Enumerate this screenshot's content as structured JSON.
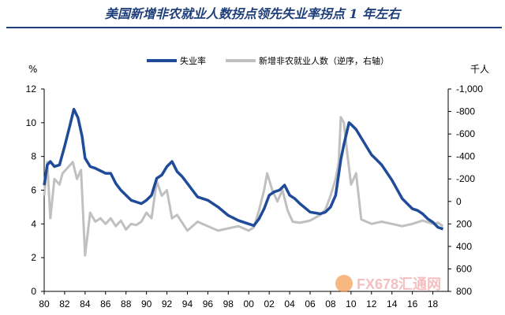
{
  "title": "美国新增非农就业人数拐点领先失业率拐点 1 年左右",
  "watermark": "FX678汇通网",
  "colors": {
    "title": "#1f3f7a",
    "unemployment": "#1f4b99",
    "payrolls": "#c0c0c0",
    "watermark": "#ef8a8a"
  },
  "chart_data": {
    "type": "line",
    "x_tick_labels": [
      "80",
      "82",
      "84",
      "86",
      "88",
      "90",
      "92",
      "94",
      "96",
      "98",
      "00",
      "02",
      "04",
      "06",
      "08",
      "10",
      "12",
      "14",
      "16",
      "18"
    ],
    "x_ticks": [
      1980,
      1982,
      1984,
      1986,
      1988,
      1990,
      1992,
      1994,
      1996,
      1998,
      2000,
      2002,
      2004,
      2006,
      2008,
      2010,
      2012,
      2014,
      2016,
      2018
    ],
    "xlim": [
      1980,
      2019.5
    ],
    "left_axis": {
      "unit": "%",
      "ticks": [
        0,
        2,
        4,
        6,
        8,
        10,
        12
      ],
      "ylim": [
        0,
        12
      ]
    },
    "right_axis": {
      "unit": "千人",
      "ticks": [
        -1000,
        -800,
        -600,
        -400,
        -200,
        0,
        200,
        400,
        600,
        800
      ],
      "tick_labels": [
        "-1,000",
        "-800",
        "-600",
        "-400",
        "-200",
        "0",
        "200",
        "400",
        "600",
        "800"
      ],
      "ylim": [
        800,
        -1000
      ],
      "inverted": true
    },
    "legend_position": "top",
    "series": [
      {
        "name": "失业率",
        "axis": "left",
        "x": [
          1980,
          1980.3,
          1980.6,
          1981,
          1981.5,
          1982,
          1982.5,
          1982.9,
          1983.3,
          1983.7,
          1984,
          1984.5,
          1985,
          1986,
          1986.5,
          1987,
          1987.5,
          1988,
          1988.5,
          1989,
          1989.5,
          1990,
          1990.5,
          1991,
          1991.5,
          1992,
          1992.5,
          1993,
          1993.5,
          1994,
          1994.5,
          1995,
          1996,
          1997,
          1998,
          1999,
          2000,
          2000.5,
          2001,
          2001.5,
          2002,
          2002.5,
          2003,
          2003.5,
          2004,
          2004.5,
          2005,
          2006,
          2007,
          2007.5,
          2008,
          2008.5,
          2009,
          2009.3,
          2009.8,
          2010,
          2010.5,
          2011,
          2012,
          2012.5,
          2013,
          2014,
          2015,
          2016,
          2016.5,
          2017,
          2017.5,
          2018,
          2018.5,
          2019
        ],
        "values": [
          6.3,
          7.5,
          7.7,
          7.4,
          7.5,
          8.6,
          9.8,
          10.8,
          10.3,
          9.2,
          7.9,
          7.4,
          7.3,
          7.0,
          7.0,
          6.4,
          6.0,
          5.7,
          5.4,
          5.3,
          5.2,
          5.4,
          5.7,
          6.7,
          6.9,
          7.4,
          7.7,
          7.1,
          6.8,
          6.4,
          6.0,
          5.6,
          5.4,
          5.0,
          4.5,
          4.2,
          4.0,
          3.9,
          4.3,
          4.9,
          5.7,
          5.9,
          6.0,
          6.3,
          5.7,
          5.5,
          5.2,
          4.7,
          4.6,
          4.7,
          5.0,
          5.7,
          7.8,
          8.7,
          10.0,
          9.9,
          9.6,
          9.1,
          8.1,
          7.8,
          7.5,
          6.6,
          5.5,
          4.9,
          4.8,
          4.6,
          4.3,
          4.1,
          3.8,
          3.7
        ]
      },
      {
        "name": "新增非农就业人数（逆序，右轴）",
        "axis": "right",
        "x": [
          1980,
          1980.3,
          1980.6,
          1981,
          1981.5,
          1981.8,
          1982.3,
          1982.8,
          1983.2,
          1983.6,
          1984,
          1984.5,
          1985,
          1985.5,
          1986,
          1986.5,
          1987,
          1987.5,
          1988,
          1988.5,
          1989,
          1989.5,
          1990,
          1990.5,
          1991,
          1991.5,
          1992,
          1992.5,
          1993,
          1994,
          1995,
          1996,
          1997,
          1998,
          1999,
          2000,
          2000.5,
          2001,
          2001.5,
          2001.8,
          2002.3,
          2002.8,
          2003.3,
          2003.8,
          2004.3,
          2005,
          2006,
          2007,
          2007.5,
          2008,
          2008.5,
          2008.8,
          2009,
          2009.3,
          2009.6,
          2010,
          2010.5,
          2011,
          2012,
          2013,
          2014,
          2015,
          2016,
          2017,
          2018,
          2018.5,
          2019
        ],
        "values": [
          -50,
          -350,
          150,
          -200,
          -150,
          -250,
          -300,
          -350,
          -200,
          -280,
          480,
          100,
          180,
          150,
          200,
          150,
          220,
          170,
          250,
          200,
          210,
          180,
          100,
          150,
          -180,
          -50,
          -100,
          150,
          120,
          260,
          180,
          220,
          260,
          240,
          220,
          260,
          230,
          80,
          -100,
          -250,
          -100,
          0,
          -100,
          80,
          180,
          190,
          170,
          120,
          70,
          -50,
          -200,
          -350,
          -750,
          -700,
          -450,
          -150,
          -250,
          160,
          200,
          180,
          200,
          220,
          200,
          170,
          200,
          190,
          220
        ]
      }
    ]
  }
}
